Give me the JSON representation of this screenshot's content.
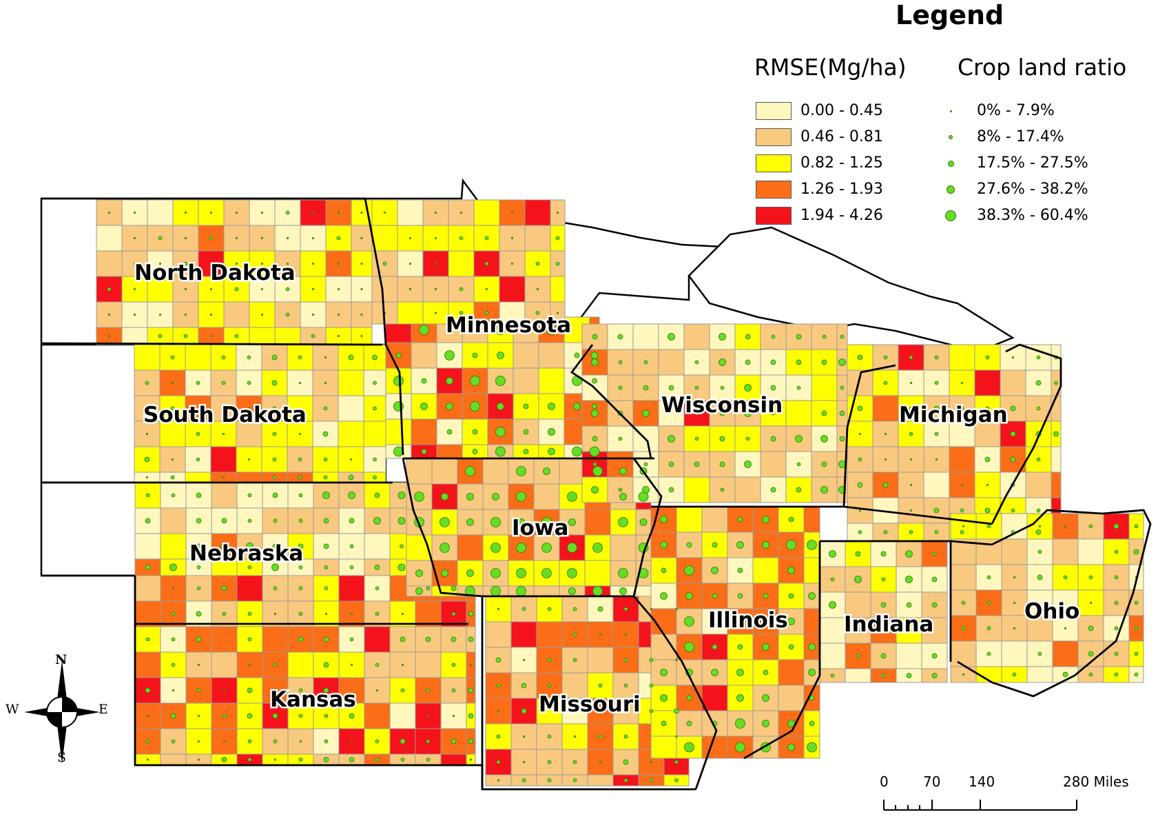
{
  "legend": {
    "title": "Legend",
    "rmse_title": "RMSE(Mg/ha)",
    "rmse_classes": [
      {
        "label": "0.00 - 0.45",
        "color": "#fff7be"
      },
      {
        "label": "0.46 - 0.81",
        "color": "#f9c97f"
      },
      {
        "label": "0.82 - 1.25",
        "color": "#ffff00"
      },
      {
        "label": "1.26 - 1.93",
        "color": "#fb6d17"
      },
      {
        "label": "1.94 - 4.26",
        "color": "#f5131b"
      }
    ],
    "crop_title": "Crop land ratio",
    "crop_classes": [
      {
        "label": "0% - 7.9%"
      },
      {
        "label": "8% - 17.4%"
      },
      {
        "label": "17.5% - 27.5%"
      },
      {
        "label": "27.6% - 38.2%"
      },
      {
        "label": "38.3% - 60.4%"
      }
    ],
    "dot_color": "#66dd22"
  },
  "states": [
    {
      "name": "North Dakota"
    },
    {
      "name": "Minnesota"
    },
    {
      "name": "South Dakota"
    },
    {
      "name": "Wisconsin"
    },
    {
      "name": "Michigan"
    },
    {
      "name": "Iowa"
    },
    {
      "name": "Nebraska"
    },
    {
      "name": "Illinois"
    },
    {
      "name": "Indiana"
    },
    {
      "name": "Ohio"
    },
    {
      "name": "Kansas"
    },
    {
      "name": "Missouri"
    }
  ],
  "scale_bar": {
    "ticks": [
      "0",
      "70",
      "140",
      "280 Miles"
    ]
  },
  "compass": {
    "n": "N",
    "s": "S",
    "e": "E",
    "w": "W"
  }
}
